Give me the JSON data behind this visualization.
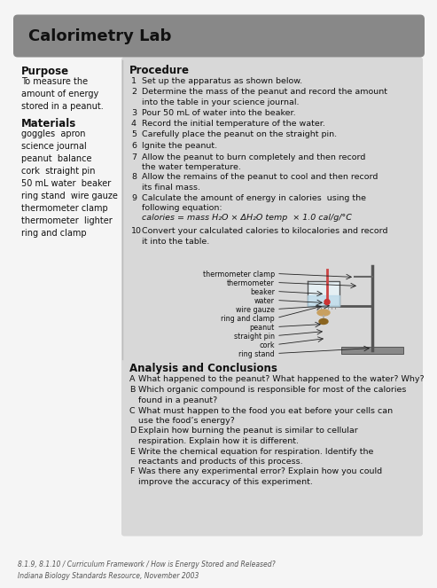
{
  "title": "Calorimetry Lab",
  "title_bg": "#888888",
  "title_color": "#111111",
  "page_bg": "#f5f5f5",
  "purpose_title": "Purpose",
  "purpose_text": "To measure the\namount of energy\nstored in a peanut.",
  "materials_title": "Materials",
  "materials_text": "goggles  apron\nscience journal\npeanut  balance\ncork  straight pin\n50 mL water  beaker\nring stand  wire gauze\nthermometer clamp\nthermometer  lighter\nring and clamp",
  "procedure_title": "Procedure",
  "procedure_steps_num": [
    "1",
    "2",
    "3",
    "4",
    "5",
    "6",
    "7",
    "8",
    "9",
    "",
    "10"
  ],
  "procedure_steps": [
    "Set up the apparatus as shown below.",
    "Determine the mass of the peanut and record the amount\ninto the table in your science journal.",
    "Pour 50 mL of water into the beaker.",
    "Record the initial temperature of the water.",
    "Carefully place the peanut on the straight pin.",
    "Ignite the peanut.",
    "Allow the peanut to burn completely and then record\nthe water temperature.",
    "Allow the remains of the peanut to cool and then record\nits final mass.",
    "Calculate the amount of energy in calories  using the\nfollowing equation:",
    "calories = mass H₂O × ΔH₂O temp  × 1.0 cal/g/°C",
    "Convert your calculated calories to kilocalories and record\nit into the table."
  ],
  "diagram_labels": [
    "thermometer clamp",
    "thermometer",
    "beaker",
    "water",
    "wire gauze",
    "ring and clamp",
    "peanut",
    "straight pin",
    "cork",
    "ring stand"
  ],
  "analysis_title": "Analysis and Conclusions",
  "analysis_items": [
    [
      "A",
      "What happened to the peanut? What happened to the water? Why?"
    ],
    [
      "B",
      "Which organic compound is responsible for most of the calories\nfound in a peanut?"
    ],
    [
      "C",
      "What must happen to the food you eat before your cells can\nuse the food’s energy?"
    ],
    [
      "D",
      "Explain how burning the peanut is similar to cellular\nrespiration. Explain how it is different."
    ],
    [
      "E",
      "Write the chemical equation for respiration. Identify the\nreactants and products of this process."
    ],
    [
      "F",
      "Was there any experimental error? Explain how you could\nimprove the accuracy of this experiment."
    ]
  ],
  "footer_text": "8.1.9, 8.1.10 / Curriculum Framework / How is Energy Stored and Released?\nIndiana Biology Standards Resource, November 2003",
  "proc_bg": "#d8d8d8",
  "analysis_bg": "#d8d8d8",
  "divider_color": "#bbbbbb"
}
